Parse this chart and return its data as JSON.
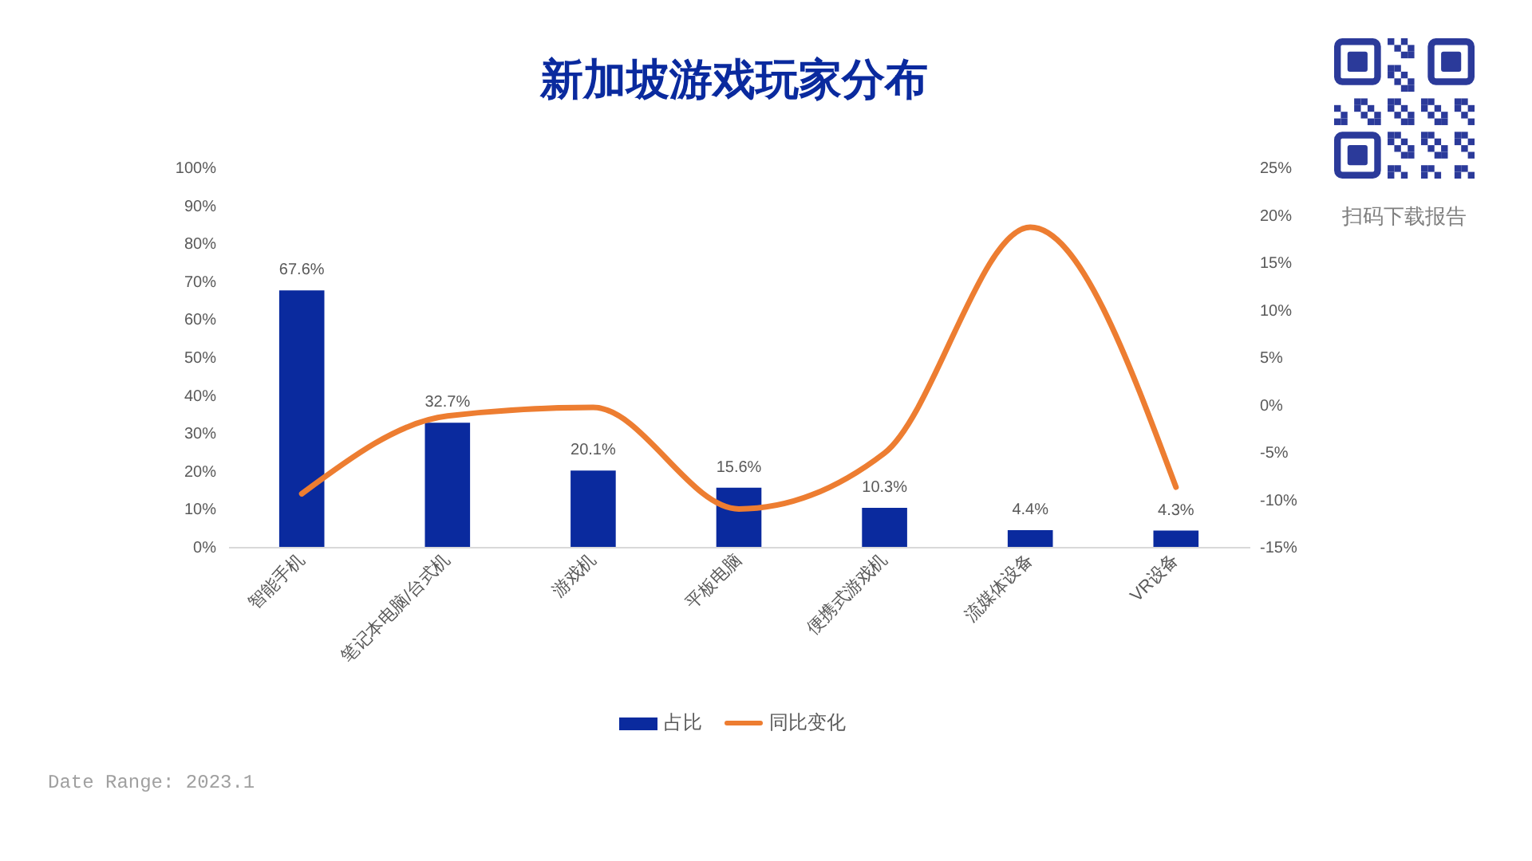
{
  "chart_data": {
    "type": "bar",
    "title": "新加坡游戏玩家分布",
    "categories": [
      "智能手机",
      "笔记本电脑/台式机",
      "游戏机",
      "平板电脑",
      "便携式游戏机",
      "流媒体设备",
      "VR设备"
    ],
    "series": [
      {
        "name": "占比",
        "color": "#0a2a9e",
        "values": [
          67.6,
          32.7,
          20.1,
          15.6,
          10.3,
          4.4,
          4.3
        ],
        "value_labels": [
          "67.6%",
          "32.7%",
          "20.1%",
          "15.6%",
          "10.3%",
          "4.4%",
          "4.3%"
        ]
      },
      {
        "name": "同比变化",
        "type": "line",
        "axis": "y2",
        "color": "#ed7d31",
        "values": [
          -9.4,
          -1.2,
          -0.3,
          -11.0,
          -5.1,
          18.7,
          -8.7
        ]
      }
    ],
    "ylim": [
      0,
      100
    ],
    "yticks": [
      {
        "value": 0,
        "label": "0%"
      },
      {
        "value": 10,
        "label": "10%"
      },
      {
        "value": 20,
        "label": "20%"
      },
      {
        "value": 30,
        "label": "30%"
      },
      {
        "value": 40,
        "label": "40%"
      },
      {
        "value": 50,
        "label": "50%"
      },
      {
        "value": 60,
        "label": "60%"
      },
      {
        "value": 70,
        "label": "70%"
      },
      {
        "value": 80,
        "label": "80%"
      },
      {
        "value": 90,
        "label": "90%"
      },
      {
        "value": 100,
        "label": "100%"
      }
    ],
    "y2lim": [
      -15,
      25
    ],
    "y2ticks": [
      {
        "value": -15,
        "label": "-15%"
      },
      {
        "value": -10,
        "label": "-10%"
      },
      {
        "value": -5,
        "label": "-5%"
      },
      {
        "value": 0,
        "label": "0%"
      },
      {
        "value": 5,
        "label": "5%"
      },
      {
        "value": 10,
        "label": "10%"
      },
      {
        "value": 15,
        "label": "15%"
      },
      {
        "value": 20,
        "label": "20%"
      },
      {
        "value": 25,
        "label": "25%"
      }
    ],
    "legend": "bottom",
    "annotations": [
      "扫码下载报告",
      "Date Range: 2023.1"
    ]
  }
}
